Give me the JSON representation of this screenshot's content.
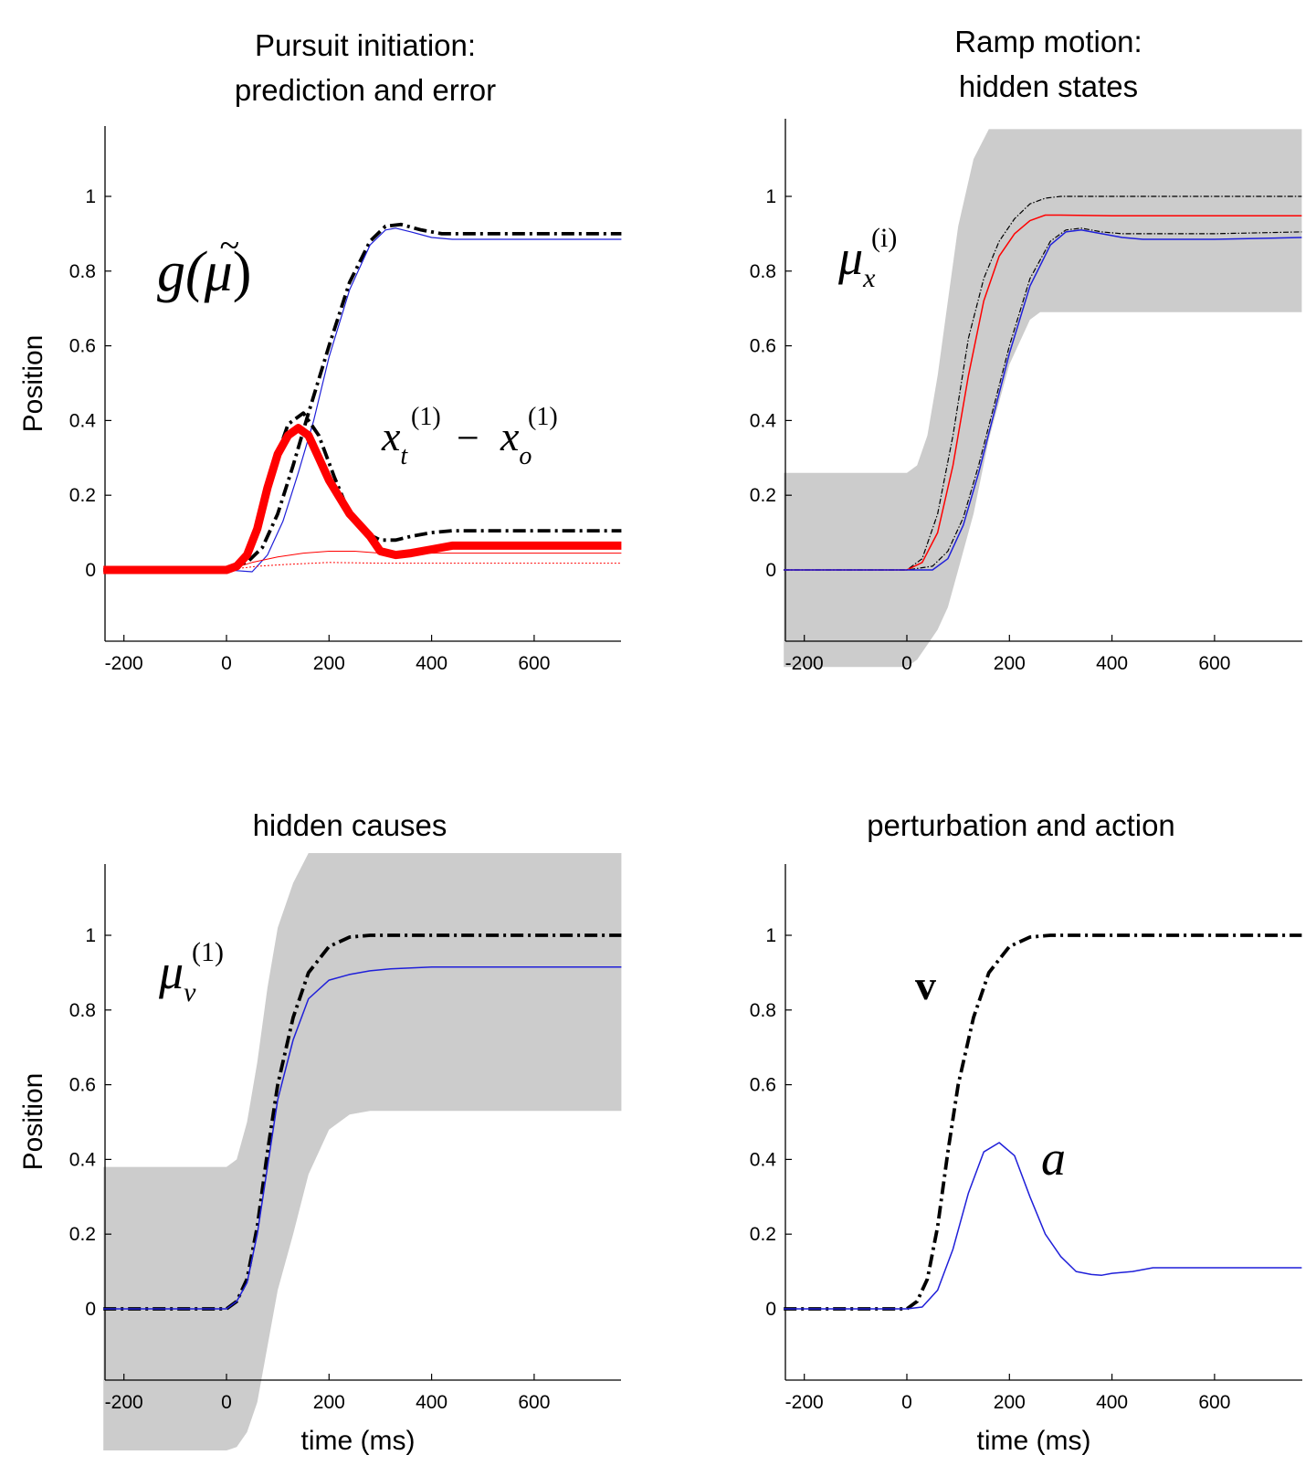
{
  "chart_data": [
    {
      "type": "line",
      "title_lines": [
        "Pursuit initiation:",
        "prediction and error"
      ],
      "xlabel": "",
      "ylabel": "Position",
      "xlim": [
        -240,
        770
      ],
      "ylim": [
        -0.19,
        1.18
      ],
      "x_ticks": [
        -200,
        0,
        200,
        400,
        600
      ],
      "y_ticks": [
        0,
        0.2,
        0.4,
        0.6,
        0.8,
        1
      ],
      "annotations": [
        {
          "id": "g",
          "main": "g(",
          "accent": "~",
          "mu": "μ",
          "close": ")"
        },
        {
          "id": "err",
          "base1": "x",
          "sub1": "t",
          "sup1": "(1)",
          "minus": "−",
          "base2": "x",
          "sub2": "o",
          "sup2": "(1)"
        }
      ],
      "series": [
        {
          "style": "black-dashdot",
          "x": [
            -240,
            0,
            40,
            70,
            100,
            130,
            160,
            200,
            240,
            280,
            310,
            340,
            380,
            420,
            460,
            520,
            600,
            770
          ],
          "y": [
            0,
            0,
            0.02,
            0.06,
            0.15,
            0.28,
            0.42,
            0.6,
            0.77,
            0.88,
            0.92,
            0.925,
            0.91,
            0.9,
            0.9,
            0.9,
            0.9,
            0.9
          ]
        },
        {
          "style": "blue-thin",
          "x": [
            -240,
            0,
            50,
            80,
            110,
            140,
            170,
            200,
            240,
            280,
            310,
            330,
            360,
            400,
            440,
            480,
            600,
            770
          ],
          "y": [
            0,
            0,
            -0.005,
            0.04,
            0.13,
            0.26,
            0.4,
            0.57,
            0.75,
            0.87,
            0.91,
            0.915,
            0.905,
            0.89,
            0.885,
            0.885,
            0.885,
            0.885
          ]
        },
        {
          "style": "black-dashdot",
          "x": [
            -240,
            0,
            30,
            60,
            90,
            120,
            150,
            180,
            210,
            240,
            270,
            300,
            330,
            360,
            400,
            440,
            500,
            600,
            770
          ],
          "y": [
            0,
            0,
            0.02,
            0.1,
            0.27,
            0.39,
            0.42,
            0.36,
            0.25,
            0.15,
            0.1,
            0.08,
            0.08,
            0.09,
            0.1,
            0.105,
            0.105,
            0.105,
            0.105
          ]
        },
        {
          "style": "red-thick",
          "x": [
            -240,
            0,
            20,
            40,
            60,
            80,
            100,
            120,
            140,
            160,
            180,
            200,
            240,
            280,
            300,
            330,
            360,
            400,
            440,
            480,
            600,
            770
          ],
          "y": [
            0,
            0,
            0.01,
            0.04,
            0.11,
            0.22,
            0.31,
            0.36,
            0.38,
            0.36,
            0.3,
            0.24,
            0.15,
            0.09,
            0.05,
            0.04,
            0.045,
            0.055,
            0.065,
            0.065,
            0.065,
            0.065
          ]
        },
        {
          "style": "red-thin",
          "x": [
            -240,
            0,
            50,
            100,
            150,
            200,
            250,
            300,
            400,
            600,
            770
          ],
          "y": [
            0,
            0,
            0.02,
            0.035,
            0.045,
            0.05,
            0.05,
            0.045,
            0.045,
            0.045,
            0.045
          ]
        },
        {
          "style": "red-dotted",
          "x": [
            -240,
            0,
            60,
            120,
            200,
            300,
            400,
            600,
            770
          ],
          "y": [
            0,
            0,
            0.01,
            0.015,
            0.02,
            0.018,
            0.018,
            0.018,
            0.018
          ]
        }
      ]
    },
    {
      "type": "line",
      "title_lines": [
        "Ramp motion:",
        "hidden states"
      ],
      "xlabel": "",
      "ylabel": "",
      "xlim": [
        -240,
        770
      ],
      "ylim": [
        -0.19,
        1.18
      ],
      "x_ticks": [
        -200,
        0,
        200,
        400,
        600
      ],
      "y_ticks": [
        0,
        0.2,
        0.4,
        0.6,
        0.8,
        1
      ],
      "annotations": [
        {
          "id": "mux",
          "base": "μ",
          "sub": "x",
          "sup": "(i)"
        }
      ],
      "band": {
        "x": [
          -240,
          0,
          20,
          40,
          60,
          80,
          100,
          130,
          160,
          200,
          240,
          260,
          300,
          400,
          500,
          600,
          770
        ],
        "lower": [
          -0.26,
          -0.26,
          -0.24,
          -0.2,
          -0.16,
          -0.1,
          0,
          0.15,
          0.35,
          0.55,
          0.67,
          0.69,
          0.69,
          0.69,
          0.69,
          0.69,
          0.69
        ],
        "upper": [
          0.26,
          0.26,
          0.28,
          0.36,
          0.52,
          0.72,
          0.92,
          1.1,
          1.18,
          1.18,
          1.18,
          1.18,
          1.18,
          1.18,
          1.18,
          1.18,
          1.18
        ]
      },
      "series": [
        {
          "style": "black-thin-dashdot",
          "x": [
            -240,
            0,
            30,
            60,
            90,
            120,
            150,
            180,
            210,
            240,
            270,
            300,
            400,
            600,
            770
          ],
          "y": [
            0,
            0,
            0.03,
            0.15,
            0.36,
            0.62,
            0.78,
            0.88,
            0.94,
            0.98,
            0.995,
            1,
            1,
            1,
            1
          ]
        },
        {
          "style": "red-line",
          "x": [
            -240,
            0,
            30,
            60,
            90,
            120,
            150,
            180,
            210,
            240,
            270,
            300,
            400,
            600,
            770
          ],
          "y": [
            0,
            0,
            0.02,
            0.1,
            0.28,
            0.52,
            0.72,
            0.84,
            0.9,
            0.935,
            0.95,
            0.95,
            0.948,
            0.948,
            0.948
          ]
        },
        {
          "style": "black-thin-dashdot",
          "x": [
            -240,
            0,
            50,
            80,
            110,
            140,
            170,
            200,
            240,
            280,
            310,
            340,
            380,
            420,
            600,
            770
          ],
          "y": [
            0,
            0,
            0.01,
            0.05,
            0.14,
            0.28,
            0.44,
            0.6,
            0.78,
            0.88,
            0.91,
            0.915,
            0.905,
            0.9,
            0.9,
            0.905
          ]
        },
        {
          "style": "blue-line",
          "x": [
            -240,
            0,
            50,
            80,
            110,
            140,
            170,
            200,
            240,
            280,
            310,
            340,
            380,
            420,
            460,
            600,
            770
          ],
          "y": [
            0,
            0,
            0,
            0.03,
            0.12,
            0.26,
            0.42,
            0.58,
            0.76,
            0.87,
            0.905,
            0.91,
            0.9,
            0.89,
            0.885,
            0.885,
            0.89
          ]
        }
      ]
    },
    {
      "type": "line",
      "title_lines": [
        "hidden causes"
      ],
      "xlabel": "time (ms)",
      "ylabel": "Position",
      "xlim": [
        -240,
        770
      ],
      "ylim": [
        -0.19,
        1.18
      ],
      "x_ticks": [
        -200,
        0,
        200,
        400,
        600
      ],
      "y_ticks": [
        0,
        0.2,
        0.4,
        0.6,
        0.8,
        1
      ],
      "annotations": [
        {
          "id": "muv",
          "base": "μ",
          "sub": "v",
          "sup": "(1)"
        }
      ],
      "band": {
        "x": [
          -240,
          0,
          20,
          40,
          60,
          80,
          100,
          130,
          160,
          200,
          240,
          280,
          320,
          400,
          770
        ],
        "lower": [
          -0.38,
          -0.38,
          -0.37,
          -0.33,
          -0.25,
          -0.1,
          0.05,
          0.2,
          0.36,
          0.48,
          0.52,
          0.53,
          0.53,
          0.53,
          0.53
        ],
        "upper": [
          0.38,
          0.38,
          0.4,
          0.5,
          0.66,
          0.86,
          1.02,
          1.14,
          1.22,
          1.22,
          1.22,
          1.22,
          1.22,
          1.22,
          1.22
        ]
      },
      "series": [
        {
          "style": "black-dashdot",
          "x": [
            -240,
            0,
            20,
            40,
            60,
            80,
            100,
            130,
            160,
            200,
            240,
            280,
            320,
            400,
            600,
            770
          ],
          "y": [
            0,
            0,
            0.02,
            0.08,
            0.22,
            0.42,
            0.6,
            0.78,
            0.9,
            0.97,
            0.995,
            1,
            1,
            1,
            1,
            1
          ]
        },
        {
          "style": "blue-line",
          "x": [
            -240,
            0,
            20,
            40,
            60,
            80,
            100,
            130,
            160,
            200,
            240,
            280,
            320,
            400,
            600,
            770
          ],
          "y": [
            0,
            0,
            0.02,
            0.07,
            0.2,
            0.38,
            0.56,
            0.72,
            0.83,
            0.88,
            0.895,
            0.905,
            0.91,
            0.915,
            0.915,
            0.915
          ]
        }
      ]
    },
    {
      "type": "line",
      "title_lines": [
        "perturbation and action"
      ],
      "xlabel": "time (ms)",
      "ylabel": "",
      "xlim": [
        -240,
        770
      ],
      "ylim": [
        -0.19,
        1.18
      ],
      "x_ticks": [
        -200,
        0,
        200,
        400,
        600
      ],
      "y_ticks": [
        0,
        0.2,
        0.4,
        0.6,
        0.8,
        1
      ],
      "annotations": [
        {
          "id": "v",
          "text": "v"
        },
        {
          "id": "a",
          "text": "a"
        }
      ],
      "series": [
        {
          "style": "black-dashdot",
          "x": [
            -240,
            0,
            20,
            40,
            60,
            80,
            100,
            130,
            160,
            200,
            240,
            280,
            320,
            400,
            600,
            770
          ],
          "y": [
            0,
            0,
            0.02,
            0.08,
            0.22,
            0.42,
            0.6,
            0.78,
            0.9,
            0.97,
            0.995,
            1,
            1,
            1,
            1,
            1
          ]
        },
        {
          "style": "blue-line",
          "x": [
            -240,
            0,
            30,
            60,
            90,
            120,
            150,
            180,
            210,
            240,
            270,
            300,
            330,
            360,
            380,
            400,
            440,
            480,
            600,
            770
          ],
          "y": [
            0,
            0,
            0.005,
            0.05,
            0.16,
            0.31,
            0.42,
            0.445,
            0.41,
            0.3,
            0.2,
            0.14,
            0.1,
            0.092,
            0.09,
            0.095,
            0.1,
            0.11,
            0.11,
            0.11
          ]
        }
      ]
    }
  ],
  "colors": {
    "black": "#000000",
    "blue": "#1f1fd9",
    "red": "#ff0000",
    "band": "#cccccc"
  }
}
